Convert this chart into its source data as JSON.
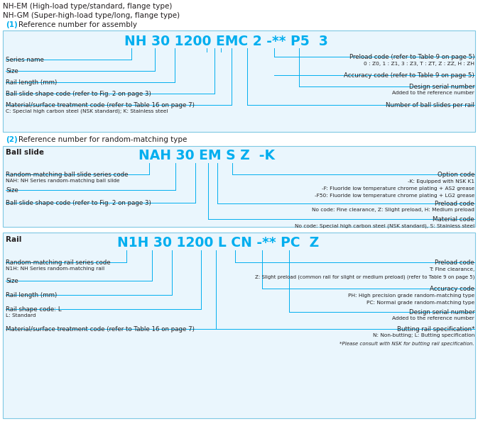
{
  "cyan": "#00AEEF",
  "text_color": "#231F20",
  "border_color": "#7EC8E3",
  "bg_color": "#FFFFFF",
  "section_bg": "#EAF6FD",
  "title1": "NH-EM (High-load type/standard, flange type)",
  "title2": "NH-GM (Super-high-load type/long, flange type)",
  "s1_heading_num": "(1)",
  "s1_heading_text": " Reference number for assembly",
  "s1_code": "NH 30 1200 EMC 2 -** P5  3",
  "s2_heading_num": "(2)",
  "s2_heading_text": " Reference number for random-matching type",
  "s2_label": "Ball slide",
  "s2_code": "NAH 30 EM S Z  -K",
  "s3_label": "Rail",
  "s3_code": "N1H 30 1200 L CN -** PC  Z"
}
